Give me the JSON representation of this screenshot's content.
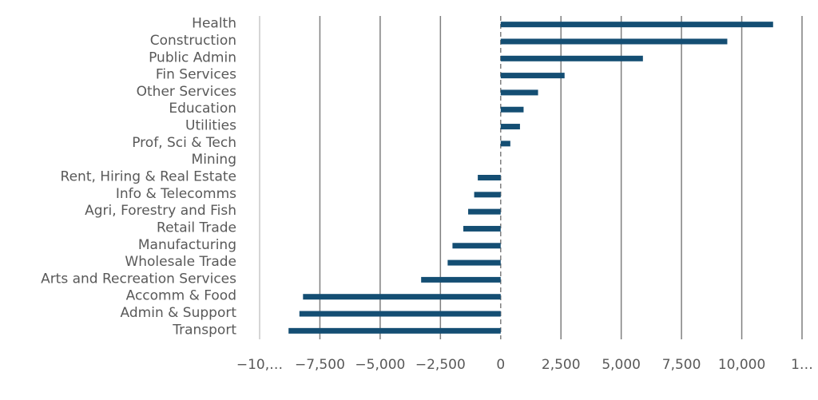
{
  "chart_data": {
    "type": "hbar",
    "categories": [
      "Health",
      "Construction",
      "Public Admin",
      "Fin Services",
      "Other Services",
      "Education",
      "Utilities",
      "Prof, Sci & Tech",
      "Mining",
      "Rent, Hiring & Real Estate",
      "Info & Telecomms",
      "Agri, Forestry and Fish",
      "Retail Trade",
      "Manufacturing",
      "Wholesale Trade",
      "Arts and Recreation Services",
      "Accomm & Food",
      "Admin & Support",
      "Transport"
    ],
    "values": [
      11300,
      9400,
      5900,
      2650,
      1550,
      950,
      800,
      400,
      0,
      -950,
      -1100,
      -1350,
      -1550,
      -2000,
      -2200,
      -3300,
      -8200,
      -8350,
      -8800
    ],
    "color": "#144e73",
    "xlim": [
      -10000,
      12500
    ],
    "xticks": [
      {
        "value": -10000,
        "label": "−10,…"
      },
      {
        "value": -7500,
        "label": "−7,500"
      },
      {
        "value": -5000,
        "label": "−5,000"
      },
      {
        "value": -2500,
        "label": "−2,500"
      },
      0,
      {
        "value": 2500,
        "label": "2,500"
      },
      {
        "value": 5000,
        "label": "5,000"
      },
      {
        "value": 7500,
        "label": "7,500"
      },
      {
        "value": 10000,
        "label": "10,000"
      },
      {
        "value": 12500,
        "label": "1…"
      }
    ],
    "grid": true
  }
}
